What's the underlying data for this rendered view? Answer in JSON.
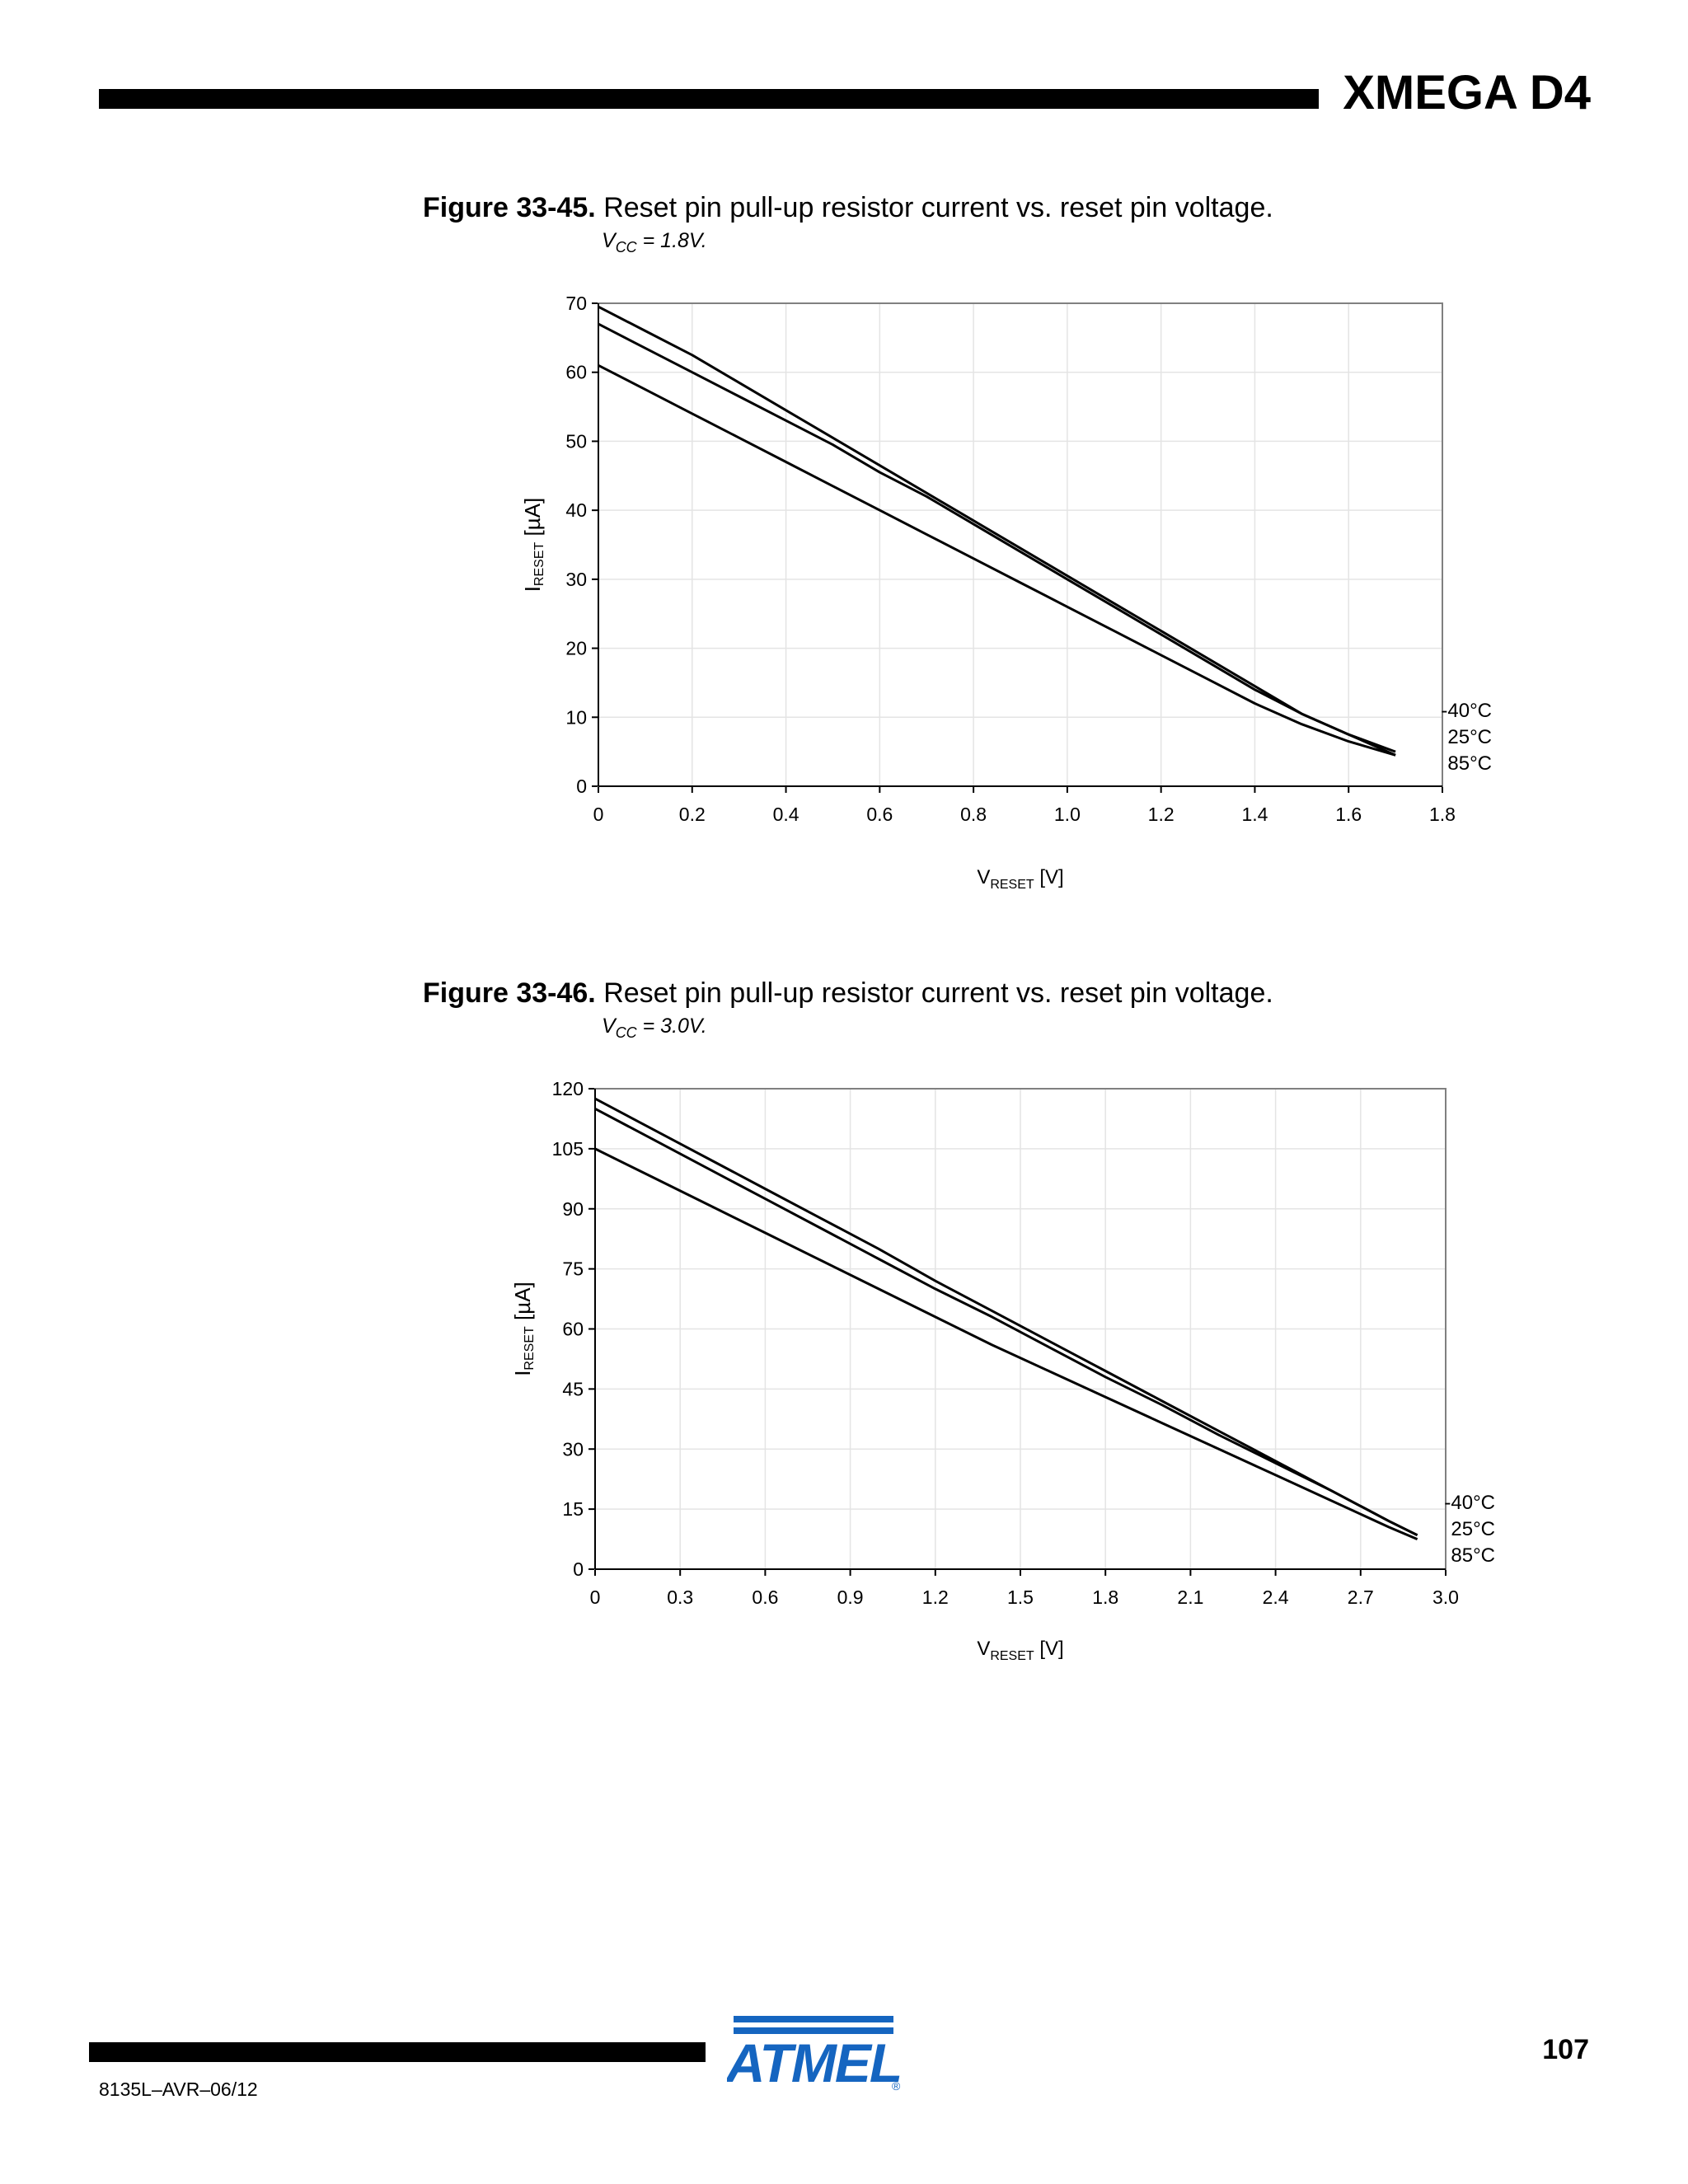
{
  "header": {
    "title": "XMEGA D4"
  },
  "footer": {
    "page_number": "107",
    "doc_code": "8135L–AVR–06/12",
    "logo": "ATMEL"
  },
  "figures": [
    {
      "number": "Figure 33-45.",
      "title": "Reset pin pull-up resistor current vs. reset pin voltage.",
      "condition_prefix": "V",
      "condition_sub": "CC",
      "condition_suffix": " = 1.8V."
    },
    {
      "number": "Figure 33-46.",
      "title": "Reset pin pull-up resistor current vs. reset pin voltage.",
      "condition_prefix": "V",
      "condition_sub": "CC",
      "condition_suffix": " = 3.0V."
    }
  ],
  "chart_data": [
    {
      "type": "line",
      "xlabel": "VRESET [V]",
      "ylabel": "IRESET [µA]",
      "xlim": [
        0,
        1.8
      ],
      "ylim": [
        0,
        70
      ],
      "xticks": [
        "0",
        "0.2",
        "0.4",
        "0.6",
        "0.8",
        "1.0",
        "1.2",
        "1.4",
        "1.6",
        "1.8"
      ],
      "yticks": [
        "0",
        "10",
        "20",
        "30",
        "40",
        "50",
        "60",
        "70"
      ],
      "grid": true,
      "legend_position": "right",
      "series": [
        {
          "name": "-40°C",
          "x": [
            0,
            0.1,
            0.2,
            0.3,
            0.4,
            0.5,
            0.6,
            0.7,
            0.8,
            0.9,
            1.0,
            1.1,
            1.2,
            1.3,
            1.4,
            1.5,
            1.6,
            1.7
          ],
          "y": [
            69.5,
            66,
            62.5,
            58.5,
            54.5,
            50.5,
            46.5,
            42.5,
            38.5,
            34.5,
            30.5,
            26.5,
            22.5,
            18.5,
            14.5,
            10.5,
            7.5,
            4.5
          ]
        },
        {
          "name": "25°C",
          "x": [
            0,
            0.1,
            0.2,
            0.3,
            0.4,
            0.5,
            0.6,
            0.7,
            0.8,
            0.9,
            1.0,
            1.1,
            1.2,
            1.3,
            1.4,
            1.5,
            1.6,
            1.7
          ],
          "y": [
            67,
            63.5,
            60,
            56.5,
            53,
            49.5,
            45.5,
            42,
            38,
            34,
            30,
            26,
            22,
            18,
            14,
            10.5,
            7.5,
            5
          ]
        },
        {
          "name": "85°C",
          "x": [
            0,
            0.1,
            0.2,
            0.3,
            0.4,
            0.5,
            0.6,
            0.7,
            0.8,
            0.9,
            1.0,
            1.1,
            1.2,
            1.3,
            1.4,
            1.5,
            1.6,
            1.7
          ],
          "y": [
            61,
            57.5,
            54,
            50.5,
            47,
            43.5,
            40,
            36.5,
            33,
            29.5,
            26,
            22.5,
            19,
            15.5,
            12,
            9,
            6.5,
            4.5
          ]
        }
      ]
    },
    {
      "type": "line",
      "xlabel": "VRESET [V]",
      "ylabel": "IRESET [µA]",
      "xlim": [
        0,
        3.0
      ],
      "ylim": [
        0,
        120
      ],
      "xticks": [
        "0",
        "0.3",
        "0.6",
        "0.9",
        "1.2",
        "1.5",
        "1.8",
        "2.1",
        "2.4",
        "2.7",
        "3.0"
      ],
      "yticks": [
        "0",
        "15",
        "30",
        "45",
        "60",
        "75",
        "90",
        "105",
        "120"
      ],
      "grid": true,
      "legend_position": "right",
      "series": [
        {
          "name": "-40°C",
          "x": [
            0,
            0.2,
            0.4,
            0.6,
            0.8,
            1.0,
            1.2,
            1.4,
            1.6,
            1.8,
            2.0,
            2.2,
            2.4,
            2.6,
            2.8,
            2.9
          ],
          "y": [
            117.5,
            110,
            102.5,
            95,
            87.5,
            80,
            72,
            64.5,
            57,
            49.5,
            42,
            34.5,
            27,
            19.5,
            12,
            8.5
          ]
        },
        {
          "name": "25°C",
          "x": [
            0,
            0.2,
            0.4,
            0.6,
            0.8,
            1.0,
            1.2,
            1.4,
            1.6,
            1.8,
            2.0,
            2.2,
            2.4,
            2.6,
            2.8,
            2.9
          ],
          "y": [
            115,
            107.5,
            100,
            92.5,
            85,
            77.5,
            70,
            63,
            55.5,
            48,
            41,
            33.5,
            26.5,
            19.5,
            12,
            8.5
          ]
        },
        {
          "name": "85°C",
          "x": [
            0,
            0.2,
            0.4,
            0.6,
            0.8,
            1.0,
            1.2,
            1.4,
            1.6,
            1.8,
            2.0,
            2.2,
            2.4,
            2.6,
            2.8,
            2.9
          ],
          "y": [
            105,
            98,
            91,
            84,
            77,
            70,
            63,
            56,
            49.5,
            43,
            36.5,
            30,
            23.5,
            17,
            10.5,
            7.5
          ]
        }
      ]
    }
  ]
}
